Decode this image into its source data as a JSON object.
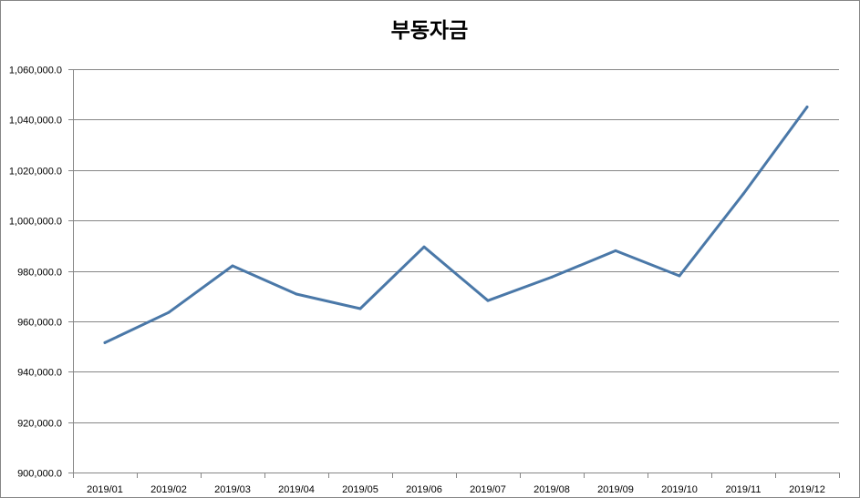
{
  "chart_data": {
    "type": "line",
    "title": "부동자금",
    "xlabel": "",
    "ylabel": "",
    "categories": [
      "2019/01",
      "2019/02",
      "2019/03",
      "2019/04",
      "2019/05",
      "2019/06",
      "2019/07",
      "2019/08",
      "2019/09",
      "2019/10",
      "2019/11",
      "2019/12"
    ],
    "series": [
      {
        "values": [
          951500,
          963500,
          982000,
          970800,
          965000,
          989500,
          968200,
          977500,
          988000,
          978000,
          1010500,
          1045000
        ],
        "color": "#4a78a8"
      }
    ],
    "ylim": [
      900000,
      1060000
    ],
    "yticks": [
      900000,
      920000,
      940000,
      960000,
      980000,
      1000000,
      1020000,
      1040000,
      1060000
    ],
    "ytick_labels": [
      "900,000.0",
      "920,000.0",
      "940,000.0",
      "960,000.0",
      "980,000.0",
      "1,000,000.0",
      "1,020,000.0",
      "1,040,000.0",
      "1,060,000.0"
    ],
    "grid": true,
    "legend": "none"
  }
}
